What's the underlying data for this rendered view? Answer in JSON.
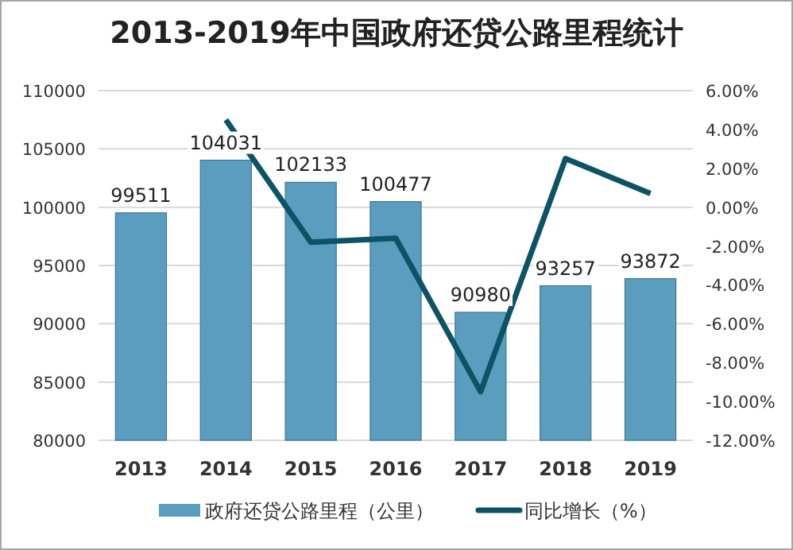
{
  "chart_data": {
    "type": "bar",
    "title": "2013-2019年中国政府还贷公路里程统计",
    "categories": [
      "2013",
      "2014",
      "2015",
      "2016",
      "2017",
      "2018",
      "2019"
    ],
    "series": [
      {
        "name": "政府还贷公路里程（公里）",
        "color": "#5a9dbf",
        "values": [
          99511,
          104031,
          102133,
          100477,
          90980,
          93257,
          93872
        ],
        "value_labels": [
          "99511",
          "104031",
          "102133",
          "100477",
          "90980",
          "93257",
          "93872"
        ]
      },
      {
        "name": "同比增长（%）",
        "type": "line",
        "axis": "y2",
        "color": "#0d5366",
        "values": [
          null,
          4.5,
          -1.8,
          -1.6,
          -9.5,
          2.5,
          0.7
        ]
      }
    ],
    "ylim": [
      80000,
      110000
    ],
    "yticks": [
      80000,
      85000,
      90000,
      95000,
      100000,
      105000,
      110000
    ],
    "y2lim": [
      -12,
      6
    ],
    "y2ticks": [
      {
        "value": -12,
        "label": "-12.00%"
      },
      {
        "value": -10,
        "label": "-10.00%"
      },
      {
        "value": -8,
        "label": "-8.00%"
      },
      {
        "value": -6,
        "label": "-6.00%"
      },
      {
        "value": -4,
        "label": "-4.00%"
      },
      {
        "value": -2,
        "label": "-2.00%"
      },
      {
        "value": 0,
        "label": "0.00%"
      },
      {
        "value": 2,
        "label": "2.00%"
      },
      {
        "value": 4,
        "label": "4.00%"
      },
      {
        "value": 6,
        "label": "6.00%"
      }
    ],
    "grid": "y",
    "legend": "bottom",
    "marker": "none"
  }
}
